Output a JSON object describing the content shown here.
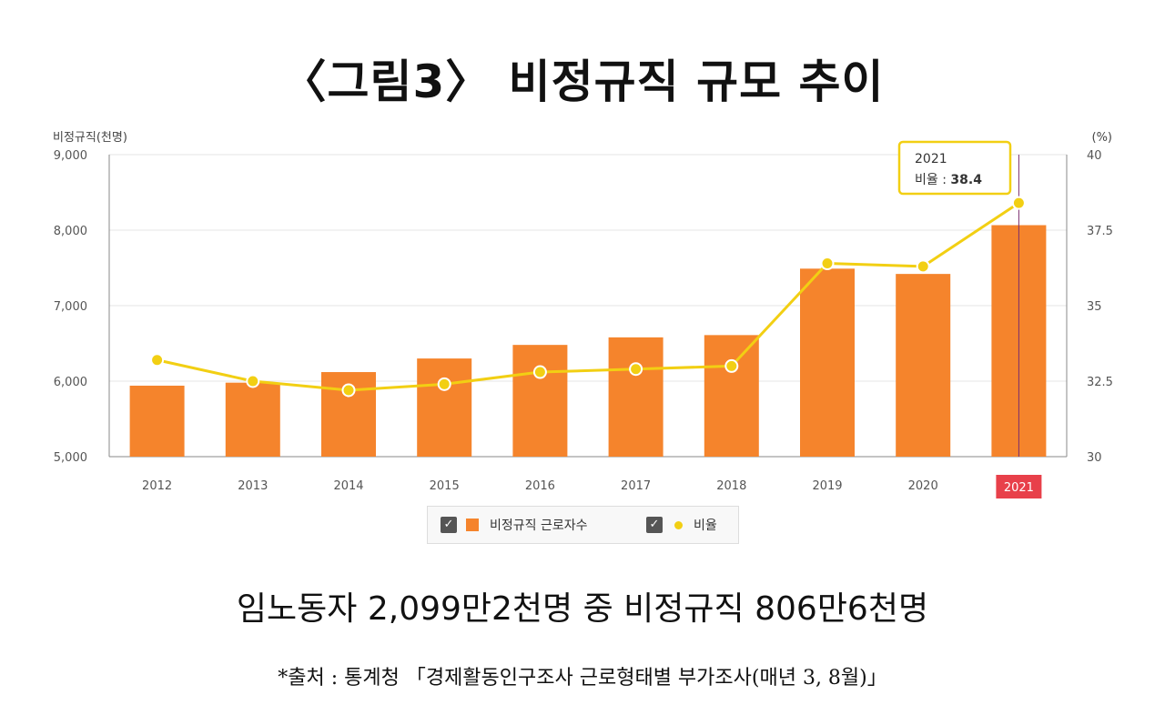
{
  "title": "〈그림3〉 비정규직 규모 추이",
  "subtitle": "임노동자 2,099만2천명 중 비정규직 806만6천명",
  "source": "*출처 : 통계청 「경제활동인구조사 근로형태별 부가조사(매년 3, 8월)」",
  "colors": {
    "bar": "#f5842c",
    "line": "#f2cf13",
    "highlight": "#e8404a",
    "tooltip_border": "#f2cf13"
  },
  "chart_data": {
    "type": "bar",
    "categories": [
      "2012",
      "2013",
      "2014",
      "2015",
      "2016",
      "2017",
      "2018",
      "2019",
      "2020",
      "2021"
    ],
    "series": [
      {
        "name": "비정규직 근로자수",
        "type": "bar",
        "axis": "left",
        "values": [
          5940,
          5980,
          6120,
          6300,
          6480,
          6580,
          6610,
          7490,
          7420,
          8066
        ]
      },
      {
        "name": "비율",
        "type": "line",
        "axis": "right",
        "values": [
          33.2,
          32.5,
          32.2,
          32.4,
          32.8,
          32.9,
          33.0,
          36.4,
          36.3,
          38.4
        ]
      }
    ],
    "ylabel_left": "비정규직(천명)",
    "ylabel_right": "(%)",
    "ylim_left": [
      5000,
      9000
    ],
    "ylim_right": [
      30,
      40
    ],
    "yticks_left": [
      "5,000",
      "6,000",
      "7,000",
      "8,000",
      "9,000"
    ],
    "yticks_right": [
      "30",
      "32.5",
      "35",
      "37.5",
      "40"
    ],
    "highlight_category": "2021",
    "tooltip": {
      "year": "2021",
      "label": "비율 : ",
      "value": "38.4"
    }
  },
  "legend": {
    "items": [
      {
        "label": "비정규직 근로자수",
        "checked": "✓"
      },
      {
        "label": "비율",
        "checked": "✓"
      }
    ]
  }
}
